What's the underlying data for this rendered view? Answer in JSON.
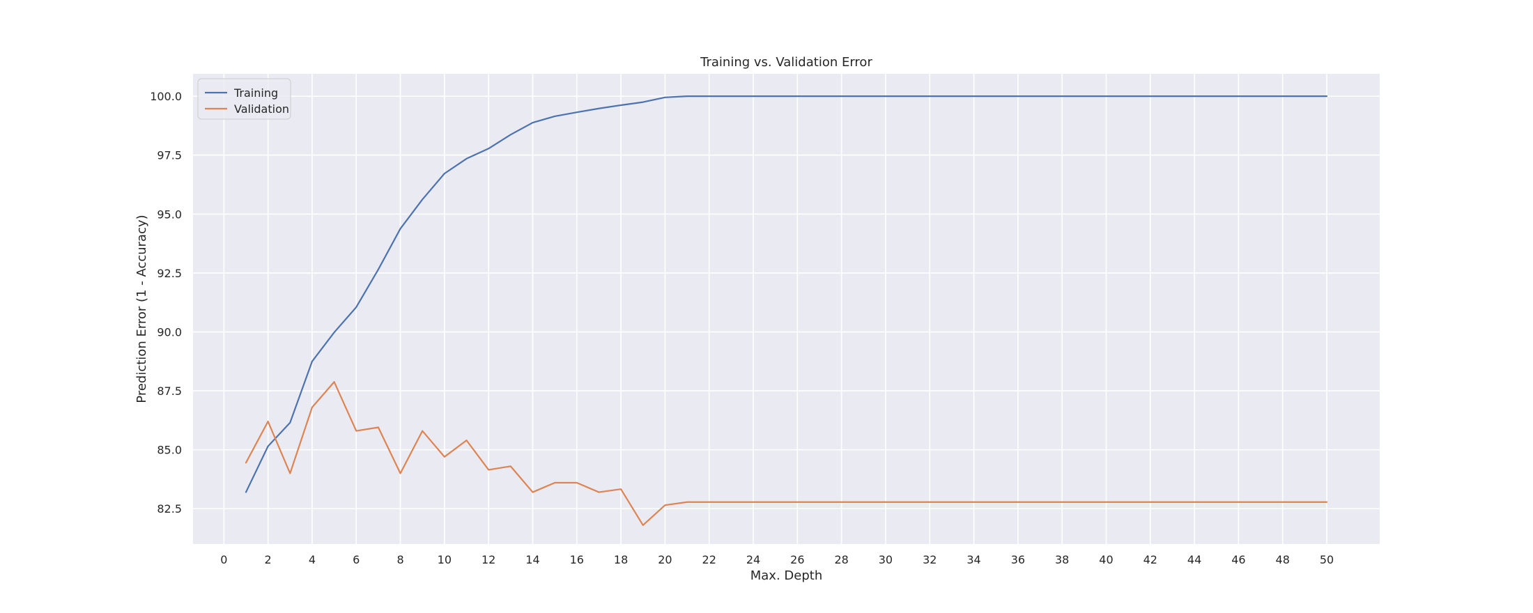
{
  "chart_data": {
    "type": "line",
    "title": "Training vs. Validation Error",
    "xlabel": "Max. Depth",
    "ylabel": "Prediction Error (1 - Accuracy)",
    "xlim": [
      -1.4,
      52.4
    ],
    "ylim": [
      81.0,
      100.95
    ],
    "xticks": [
      0,
      2,
      4,
      6,
      8,
      10,
      12,
      14,
      16,
      18,
      20,
      22,
      24,
      26,
      28,
      30,
      32,
      34,
      36,
      38,
      40,
      42,
      44,
      46,
      48,
      50
    ],
    "yticks": [
      82.5,
      85.0,
      87.5,
      90.0,
      92.5,
      95.0,
      97.5,
      100.0
    ],
    "ytick_labels": [
      "82.5",
      "85.0",
      "87.5",
      "90.0",
      "92.5",
      "95.0",
      "97.5",
      "100.0"
    ],
    "grid": true,
    "legend_position": "top-left",
    "x": [
      1,
      2,
      3,
      4,
      5,
      6,
      7,
      8,
      9,
      10,
      11,
      12,
      13,
      14,
      15,
      16,
      17,
      18,
      19,
      20,
      21,
      22,
      23,
      24,
      25,
      26,
      27,
      28,
      29,
      30,
      31,
      32,
      33,
      34,
      35,
      36,
      37,
      38,
      39,
      40,
      41,
      42,
      43,
      44,
      45,
      46,
      47,
      48,
      49,
      50
    ],
    "series": [
      {
        "name": "Training",
        "color": "#4c72b0",
        "values": [
          83.2,
          85.15,
          86.15,
          88.75,
          89.98,
          91.05,
          92.65,
          94.38,
          95.62,
          96.72,
          97.35,
          97.78,
          98.37,
          98.88,
          99.15,
          99.32,
          99.48,
          99.62,
          99.75,
          99.95,
          100,
          100,
          100,
          100,
          100,
          100,
          100,
          100,
          100,
          100,
          100,
          100,
          100,
          100,
          100,
          100,
          100,
          100,
          100,
          100,
          100,
          100,
          100,
          100,
          100,
          100,
          100,
          100,
          100,
          100
        ]
      },
      {
        "name": "Validation",
        "color": "#dd8452",
        "values": [
          84.45,
          86.2,
          84.0,
          86.8,
          87.88,
          85.8,
          85.95,
          84.0,
          85.8,
          84.7,
          85.4,
          84.15,
          84.3,
          83.2,
          83.6,
          83.6,
          83.2,
          83.33,
          81.8,
          82.65,
          82.78,
          82.78,
          82.78,
          82.78,
          82.78,
          82.78,
          82.78,
          82.78,
          82.78,
          82.78,
          82.78,
          82.78,
          82.78,
          82.78,
          82.78,
          82.78,
          82.78,
          82.78,
          82.78,
          82.78,
          82.78,
          82.78,
          82.78,
          82.78,
          82.78,
          82.78,
          82.78,
          82.78,
          82.78,
          82.78
        ]
      }
    ],
    "style": {
      "plot_background": "#eaeaf2",
      "grid_color": "#ffffff",
      "text_color": "#262626"
    }
  }
}
